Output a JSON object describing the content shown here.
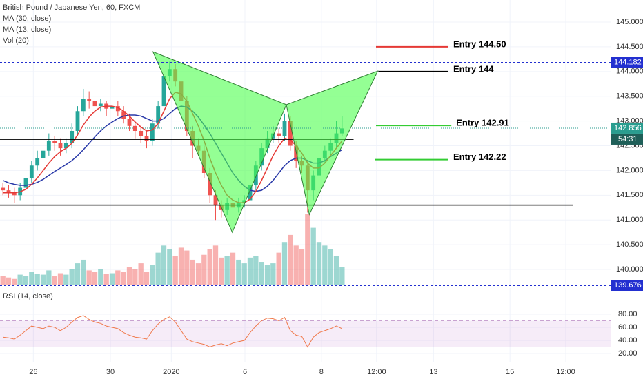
{
  "chart_data": [
    {
      "type": "candlestick",
      "title": "British Pound / Japanese Yen, 60, FXCM",
      "indicator_labels": [
        "MA (30, close)",
        "MA (13, close)",
        "Vol (20)"
      ],
      "xlim": [
        0,
        106.2
      ],
      "xticks": [
        {
          "value": 5.8,
          "label": "26"
        },
        {
          "value": 19.2,
          "label": "30"
        },
        {
          "value": 29.8,
          "label": "2020"
        },
        {
          "value": 42.6,
          "label": "6"
        },
        {
          "value": 55.9,
          "label": "8"
        },
        {
          "value": 65.5,
          "label": "12:00"
        },
        {
          "value": 75.4,
          "label": "13"
        },
        {
          "value": 88.7,
          "label": "15"
        },
        {
          "value": 98.4,
          "label": "12:00"
        }
      ],
      "ylim": [
        139.666,
        145.446
      ],
      "yticks": [
        {
          "value": 140,
          "label": "140.000"
        },
        {
          "value": 140.5,
          "label": "140.500"
        },
        {
          "value": 141,
          "label": "141.000"
        },
        {
          "value": 141.5,
          "label": "141.500"
        },
        {
          "value": 142,
          "label": "142.000"
        },
        {
          "value": 142.5,
          "label": "142.500"
        },
        {
          "value": 143,
          "label": "143.000"
        },
        {
          "value": 143.5,
          "label": "143.500"
        },
        {
          "value": 144,
          "label": "144.000"
        },
        {
          "value": 144.5,
          "label": "144.500"
        },
        {
          "value": 145,
          "label": "145.000"
        }
      ],
      "grid": true,
      "up_color": "#26a69a",
      "down_color": "#ef5350",
      "open": [
        141.65,
        141.6,
        141.55,
        141.5,
        141.65,
        141.85,
        142.1,
        142.25,
        142.4,
        142.6,
        142.55,
        142.45,
        142.55,
        142.8,
        143.2,
        143.45,
        143.4,
        143.3,
        143.35,
        143.25,
        143.3,
        143.2,
        143.05,
        142.9,
        142.8,
        142.7,
        142.6,
        142.95,
        143.3,
        143.9,
        144.05,
        143.8,
        143.4,
        142.8,
        142.5,
        142.4,
        141.95,
        141.5,
        141.3,
        141.2,
        141.35,
        141.25,
        141.35,
        141.4,
        141.7,
        142.1,
        142.45,
        142.65,
        142.75,
        142.7,
        143.0,
        142.5,
        142.2,
        142.1,
        141.6,
        141.9,
        142.25,
        142.4,
        142.55,
        142.75
      ],
      "high": [
        141.75,
        141.7,
        141.65,
        141.75,
        141.95,
        142.2,
        142.4,
        142.55,
        142.75,
        142.7,
        142.65,
        142.65,
        142.95,
        143.3,
        143.65,
        143.6,
        143.5,
        143.45,
        143.4,
        143.4,
        143.4,
        143.3,
        143.15,
        143.0,
        142.9,
        142.8,
        143.05,
        143.4,
        144.05,
        144.2,
        144.15,
        143.9,
        143.5,
        142.9,
        142.65,
        142.5,
        142.05,
        141.6,
        141.4,
        141.45,
        141.45,
        141.45,
        141.5,
        141.8,
        142.2,
        142.55,
        142.8,
        142.9,
        142.85,
        143.15,
        143.1,
        142.6,
        142.3,
        142.2,
        142.0,
        142.35,
        142.5,
        142.65,
        143.0,
        143.1
      ],
      "low": [
        141.5,
        141.45,
        141.35,
        141.4,
        141.55,
        141.75,
        142.0,
        142.15,
        142.3,
        142.4,
        142.3,
        142.35,
        142.45,
        142.7,
        143.1,
        143.25,
        143.2,
        143.2,
        143.1,
        143.15,
        143.1,
        142.95,
        142.8,
        142.65,
        142.55,
        142.45,
        142.5,
        142.85,
        143.2,
        143.8,
        143.7,
        143.3,
        142.7,
        142.25,
        142.3,
        141.85,
        141.35,
        141.0,
        141.05,
        141.1,
        141.15,
        141.15,
        141.25,
        141.3,
        141.6,
        142.0,
        142.35,
        142.55,
        142.55,
        142.6,
        142.4,
        142.05,
        141.95,
        141.15,
        141.4,
        141.8,
        142.15,
        142.3,
        142.45,
        142.7
      ],
      "close": [
        141.6,
        141.55,
        141.5,
        141.65,
        141.85,
        142.1,
        142.25,
        142.4,
        142.6,
        142.55,
        142.45,
        142.55,
        142.8,
        143.2,
        143.45,
        143.4,
        143.3,
        143.35,
        143.25,
        143.3,
        143.2,
        143.05,
        142.9,
        142.8,
        142.7,
        142.6,
        142.95,
        143.3,
        143.9,
        144.05,
        143.8,
        143.4,
        142.8,
        142.5,
        142.4,
        141.95,
        141.5,
        141.3,
        141.2,
        141.35,
        141.25,
        141.35,
        141.4,
        141.7,
        142.1,
        142.45,
        142.65,
        142.75,
        142.7,
        143.0,
        142.5,
        142.2,
        142.1,
        141.6,
        141.9,
        142.25,
        142.4,
        142.55,
        142.75,
        142.85
      ],
      "volume": [
        12,
        10,
        8,
        14,
        12,
        18,
        15,
        14,
        20,
        12,
        16,
        14,
        22,
        30,
        35,
        20,
        18,
        22,
        15,
        16,
        20,
        18,
        25,
        22,
        30,
        18,
        28,
        45,
        55,
        50,
        40,
        52,
        48,
        35,
        30,
        42,
        50,
        55,
        38,
        40,
        45,
        35,
        30,
        38,
        40,
        32,
        28,
        30,
        45,
        60,
        70,
        55,
        50,
        100,
        80,
        60,
        55,
        50,
        40,
        25
      ],
      "vlim": [
        0,
        100
      ],
      "series": [
        {
          "name": "MA (30, close)",
          "color": "#2838a8",
          "values": [
            141.8,
            141.75,
            141.72,
            141.7,
            141.7,
            141.72,
            141.76,
            141.82,
            141.9,
            141.98,
            142.05,
            142.12,
            142.2,
            142.3,
            142.42,
            142.55,
            142.68,
            142.8,
            142.9,
            142.98,
            143.05,
            143.1,
            143.12,
            143.12,
            143.1,
            143.05,
            143.0,
            143.0,
            143.05,
            143.15,
            143.25,
            143.3,
            143.28,
            143.2,
            143.08,
            142.92,
            142.75,
            142.55,
            142.35,
            142.15,
            141.95,
            141.8,
            141.68,
            141.6,
            141.58,
            141.6,
            141.68,
            141.8,
            141.95,
            142.1,
            142.2,
            142.25,
            142.25,
            142.2,
            142.15,
            142.15,
            142.2,
            142.28,
            142.35,
            142.42
          ]
        },
        {
          "name": "MA (13, close)",
          "color": "#e53935",
          "values": [
            141.55,
            141.55,
            141.55,
            141.57,
            141.62,
            141.72,
            141.85,
            142.0,
            142.15,
            142.28,
            142.38,
            142.45,
            142.55,
            142.72,
            142.92,
            143.08,
            143.2,
            143.28,
            143.3,
            143.3,
            143.27,
            143.2,
            143.1,
            142.98,
            142.88,
            142.8,
            142.82,
            142.95,
            143.2,
            143.45,
            143.58,
            143.55,
            143.4,
            143.15,
            142.9,
            142.6,
            142.25,
            141.95,
            141.7,
            141.5,
            141.4,
            141.35,
            141.35,
            141.42,
            141.58,
            141.8,
            142.05,
            142.3,
            142.5,
            142.65,
            142.62,
            142.5,
            142.35,
            142.15,
            142.05,
            142.05,
            142.15,
            142.3,
            142.45,
            142.6
          ]
        }
      ],
      "pattern": {
        "color": "#4cff4c",
        "stroke": "#2e7d32",
        "shapes": [
          {
            "points": [
              [
                26.6,
                144.4
              ],
              [
                40.4,
                140.75
              ],
              [
                49.8,
                143.33
              ]
            ]
          },
          {
            "points": [
              [
                49.8,
                143.33
              ],
              [
                53.8,
                141.11
              ],
              [
                65.7,
                144.01
              ]
            ]
          }
        ]
      },
      "levels": [
        {
          "value": 142.63,
          "x": [
            0,
            61.5
          ],
          "color": "#000000"
        },
        {
          "value": 141.3,
          "x": [
            0,
            99.6
          ],
          "color": "#000000"
        }
      ],
      "annotations": [
        {
          "text": "Entry 144.50",
          "value": 144.5,
          "x": [
            65.4,
            78.0
          ],
          "color": "#e53935"
        },
        {
          "text": "Entry 144",
          "value": 144.0,
          "x": [
            65.8,
            78.0
          ],
          "color": "#000000"
        },
        {
          "text": "Entry 142.91",
          "value": 142.91,
          "x": [
            65.4,
            78.5
          ],
          "color": "#33cc33"
        },
        {
          "text": "Entry 142.22",
          "value": 142.22,
          "x": [
            65.2,
            78.0
          ],
          "color": "#33cc33"
        }
      ],
      "price_lines": [
        {
          "value": 144.182,
          "label": "144.182",
          "color": "#2330d0",
          "style": "dashed"
        },
        {
          "value": 142.856,
          "label": "142.856",
          "color": "#2a9d8f",
          "style": "dotted"
        },
        {
          "value": 139.676,
          "label": "139.676",
          "color": "#2330d0",
          "style": "dashed"
        }
      ],
      "countdown": "54:31"
    },
    {
      "type": "line",
      "title": "RSI (14, close)",
      "ylim": [
        7.37,
        120
      ],
      "yticks": [
        {
          "value": 80,
          "label": "80.00"
        },
        {
          "value": 60,
          "label": "60.00"
        },
        {
          "value": 40,
          "label": "40.00"
        },
        {
          "value": 20,
          "label": "20.00"
        }
      ],
      "bands": [
        70,
        30
      ],
      "band_color": "#9c27b0",
      "series": [
        {
          "name": "RSI (14, close)",
          "color": "#f0784a",
          "values": [
            45,
            44,
            42,
            48,
            55,
            62,
            60,
            58,
            62,
            60,
            55,
            60,
            68,
            75,
            78,
            72,
            68,
            66,
            62,
            60,
            58,
            52,
            48,
            45,
            44,
            42,
            55,
            65,
            72,
            76,
            68,
            55,
            42,
            38,
            36,
            34,
            30,
            33,
            35,
            32,
            36,
            38,
            40,
            52,
            62,
            70,
            74,
            73,
            70,
            75,
            55,
            48,
            46,
            30,
            45,
            52,
            55,
            58,
            62,
            58
          ]
        }
      ]
    }
  ]
}
